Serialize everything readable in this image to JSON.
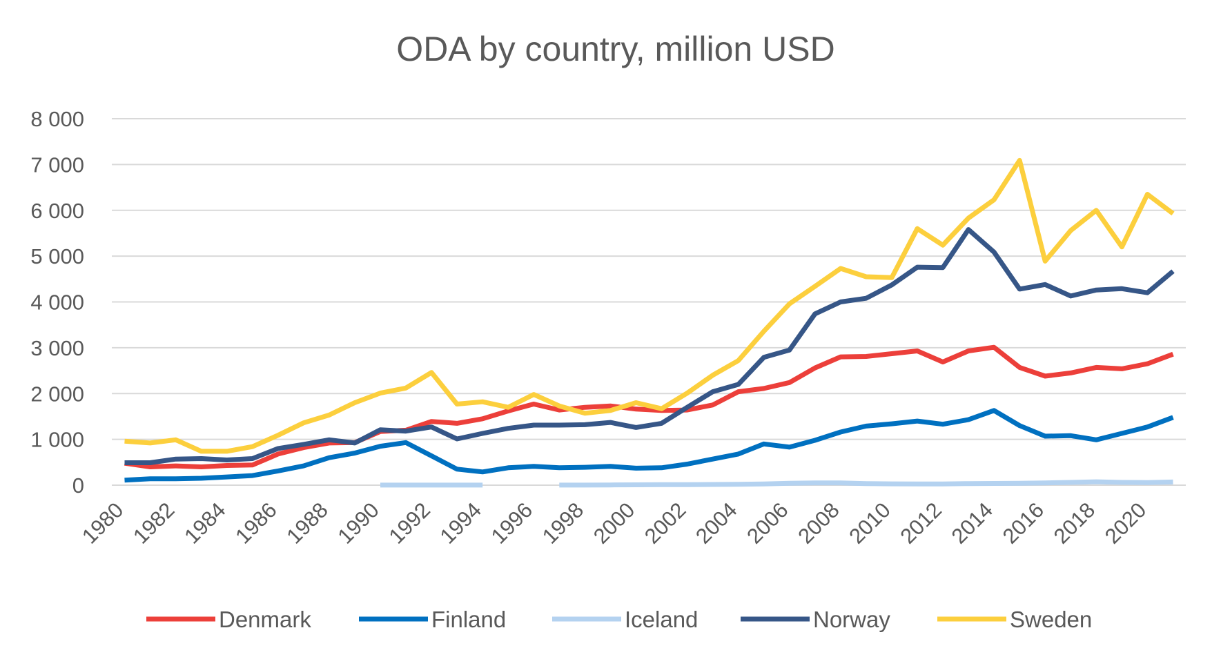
{
  "chart_data": {
    "type": "line",
    "title": "ODA by country, million USD",
    "xlabel": "",
    "ylabel": "",
    "ylim": [
      0,
      8000
    ],
    "y_ticks": [
      0,
      1000,
      2000,
      3000,
      4000,
      5000,
      6000,
      7000,
      8000
    ],
    "y_tick_labels": [
      "0",
      "1 000",
      "2 000",
      "3 000",
      "4 000",
      "5 000",
      "6 000",
      "7 000",
      "8 000"
    ],
    "x": [
      1980,
      1981,
      1982,
      1983,
      1984,
      1985,
      1986,
      1987,
      1988,
      1989,
      1990,
      1991,
      1992,
      1993,
      1994,
      1995,
      1996,
      1997,
      1998,
      1999,
      2000,
      2001,
      2002,
      2003,
      2004,
      2005,
      2006,
      2007,
      2008,
      2009,
      2010,
      2011,
      2012,
      2013,
      2014,
      2015,
      2016,
      2017,
      2018,
      2019,
      2020,
      2021
    ],
    "x_tick_labels": [
      "1980",
      "1982",
      "1984",
      "1986",
      "1988",
      "1990",
      "1992",
      "1994",
      "1996",
      "1998",
      "2000",
      "2002",
      "2004",
      "2006",
      "2008",
      "2010",
      "2012",
      "2014",
      "2016",
      "2018",
      "2020"
    ],
    "grid": true,
    "legend_position": "bottom",
    "series": [
      {
        "name": "Denmark",
        "color": "#ec3f3a",
        "values": [
          480,
          400,
          420,
          400,
          430,
          440,
          680,
          820,
          920,
          930,
          1170,
          1200,
          1390,
          1350,
          1450,
          1620,
          1770,
          1640,
          1700,
          1730,
          1660,
          1630,
          1640,
          1750,
          2040,
          2110,
          2240,
          2560,
          2800,
          2810,
          2870,
          2930,
          2690,
          2930,
          3010,
          2570,
          2380,
          2450,
          2570,
          2540,
          2650,
          2860
        ]
      },
      {
        "name": "Finland",
        "color": "#0070c0",
        "values": [
          110,
          140,
          140,
          150,
          180,
          210,
          310,
          420,
          600,
          700,
          850,
          930,
          640,
          350,
          290,
          380,
          410,
          380,
          390,
          410,
          370,
          380,
          460,
          570,
          680,
          900,
          830,
          980,
          1160,
          1290,
          1340,
          1400,
          1330,
          1430,
          1630,
          1300,
          1070,
          1080,
          990,
          1130,
          1270,
          1480
        ]
      },
      {
        "name": "Iceland",
        "color": "#b4d2f0",
        "values": [
          null,
          null,
          null,
          null,
          null,
          null,
          null,
          null,
          null,
          null,
          1,
          1,
          2,
          2,
          2,
          null,
          null,
          1,
          2,
          5,
          8,
          10,
          12,
          15,
          20,
          27,
          41,
          48,
          48,
          34,
          29,
          26,
          26,
          35,
          37,
          40,
          50,
          60,
          74,
          60,
          57,
          70
        ]
      },
      {
        "name": "Norway",
        "color": "#365687",
        "values": [
          490,
          490,
          570,
          580,
          550,
          580,
          800,
          890,
          990,
          920,
          1210,
          1180,
          1270,
          1010,
          1130,
          1240,
          1310,
          1310,
          1320,
          1370,
          1260,
          1350,
          1700,
          2040,
          2200,
          2790,
          2950,
          3740,
          4000,
          4080,
          4370,
          4760,
          4750,
          5580,
          5090,
          4280,
          4380,
          4130,
          4260,
          4290,
          4200,
          4670
        ]
      },
      {
        "name": "Sweden",
        "color": "#fccf3d",
        "values": [
          960,
          920,
          990,
          740,
          740,
          840,
          1090,
          1360,
          1530,
          1800,
          2010,
          2120,
          2460,
          1770,
          1820,
          1700,
          1980,
          1730,
          1570,
          1630,
          1800,
          1670,
          2010,
          2400,
          2720,
          3360,
          3960,
          4340,
          4730,
          4550,
          4530,
          5600,
          5240,
          5830,
          6230,
          7090,
          4890,
          5560,
          6000,
          5200,
          6350,
          5930
        ]
      }
    ]
  }
}
